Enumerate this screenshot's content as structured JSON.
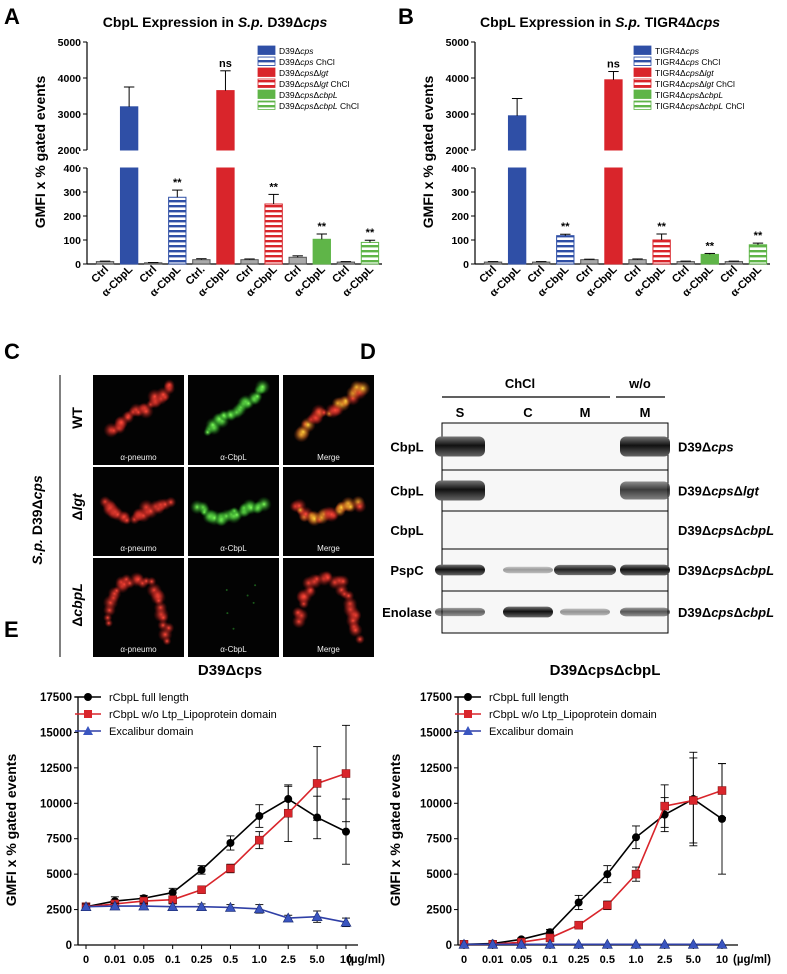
{
  "panel_labels": [
    "A",
    "B",
    "C",
    "D",
    "E"
  ],
  "colors": {
    "blue": "#2f4fa6",
    "red": "#d9252b",
    "green": "#5fb548",
    "gray": "#aaaaaa",
    "black": "#000000",
    "purple": "#2f3fa6"
  },
  "chart_data": [
    {
      "id": "A",
      "type": "bar",
      "title": "CbpL Expression in S.p. D39Δcps",
      "title_plain": "CbpL Expression in ",
      "title_italic": "S.p.",
      "title_strain": " D39Δ",
      "title_strain_italic": "cps",
      "ylabel": "GMFI x % gated events",
      "ylim_lower": [
        0,
        400
      ],
      "ylim_upper": [
        2000,
        5000
      ],
      "yticks_lower": [
        "0",
        "100",
        "200",
        "300",
        "400"
      ],
      "yticks_upper": [
        "2000",
        "3000",
        "4000",
        "5000"
      ],
      "categories": [
        "Ctrl",
        "α-CbpL",
        "Ctrl",
        "α-CbpL",
        "Ctrl.",
        "α-CbpL",
        "Ctrl",
        "α-CbpL",
        "Ctrl",
        "α-CbpL",
        "Ctrl",
        "α-CbpL"
      ],
      "values": [
        10,
        3200,
        5,
        278,
        18,
        3650,
        18,
        250,
        28,
        103,
        8,
        90
      ],
      "errors": [
        2,
        550,
        1,
        30,
        4,
        550,
        3,
        40,
        6,
        22,
        2,
        9
      ],
      "bar_colors": [
        "gray",
        "blue",
        "gray",
        "blue",
        "gray",
        "red",
        "gray",
        "red",
        "gray",
        "green",
        "gray",
        "green"
      ],
      "striped": [
        false,
        false,
        false,
        true,
        false,
        false,
        false,
        true,
        false,
        false,
        false,
        true
      ],
      "annotations": [
        "",
        "",
        "",
        "**",
        "",
        "ns",
        "",
        "**",
        "",
        "**",
        "",
        "**"
      ],
      "legend": [
        {
          "label": "D39Δcps",
          "color": "blue",
          "striped": false
        },
        {
          "label": "D39Δcps ChCl",
          "color": "blue",
          "striped": true
        },
        {
          "label": "D39ΔcpsΔlgt",
          "color": "red",
          "striped": false
        },
        {
          "label": "D39ΔcpsΔlgt ChCl",
          "color": "red",
          "striped": true
        },
        {
          "label": "D39ΔcpsΔcbpL",
          "color": "green",
          "striped": false
        },
        {
          "label": "D39ΔcpsΔcbpL ChCl",
          "color": "green",
          "striped": true
        }
      ]
    },
    {
      "id": "B",
      "type": "bar",
      "title": "CbpL Expression in S.p. TIGR4Δcps",
      "title_plain": "CbpL Expression in ",
      "title_italic": "S.p.",
      "title_strain": " TIGR4Δ",
      "title_strain_italic": "cps",
      "ylabel": "GMFI x % gated events",
      "ylim_lower": [
        0,
        400
      ],
      "ylim_upper": [
        2000,
        5000
      ],
      "yticks_lower": [
        "0",
        "100",
        "200",
        "300",
        "400"
      ],
      "yticks_upper": [
        "2000",
        "3000",
        "4000",
        "5000"
      ],
      "categories": [
        "Ctrl",
        "α-CbpL",
        "Ctrl",
        "α-CbpL",
        "Ctrl",
        "α-CbpL",
        "Ctrl",
        "α-CbpL",
        "Ctrl",
        "α-CbpL",
        "Ctrl",
        "α-CbpL"
      ],
      "values": [
        8,
        2950,
        8,
        118,
        18,
        3950,
        18,
        100,
        10,
        40,
        10,
        80
      ],
      "errors": [
        2,
        480,
        2,
        6,
        2,
        230,
        3,
        25,
        2,
        4,
        2,
        7
      ],
      "bar_colors": [
        "gray",
        "blue",
        "gray",
        "blue",
        "gray",
        "red",
        "gray",
        "red",
        "gray",
        "green",
        "gray",
        "green"
      ],
      "striped": [
        false,
        false,
        false,
        true,
        false,
        false,
        false,
        true,
        false,
        false,
        false,
        true
      ],
      "annotations": [
        "",
        "",
        "",
        "**",
        "",
        "ns",
        "",
        "**",
        "",
        "**",
        "",
        "**"
      ],
      "legend": [
        {
          "label": "TIGR4Δcps",
          "color": "blue",
          "striped": false
        },
        {
          "label": "TIGR4Δcps ChCl",
          "color": "blue",
          "striped": true
        },
        {
          "label": "TIGR4ΔcpsΔlgt",
          "color": "red",
          "striped": false
        },
        {
          "label": "TIGR4ΔcpsΔlgt ChCl",
          "color": "red",
          "striped": true
        },
        {
          "label": "TIGR4ΔcpsΔcbpL",
          "color": "green",
          "striped": false
        },
        {
          "label": "TIGR4ΔcpsΔcbpL ChCl",
          "color": "green",
          "striped": true
        }
      ]
    },
    {
      "id": "E1",
      "type": "line",
      "title": "D39Δcps",
      "ylabel": "GMFI x % gated events",
      "xunit": "(µg/ml)",
      "x": [
        "0",
        "0.01",
        "0.05",
        "0.1",
        "0.25",
        "0.5",
        "1.0",
        "2.5",
        "5.0",
        "10"
      ],
      "ylim": [
        0,
        17500
      ],
      "yticks": [
        "0",
        "2500",
        "5000",
        "7500",
        "10000",
        "12500",
        "15000",
        "17500"
      ],
      "series": [
        {
          "name": "rCbpL full length",
          "color": "black",
          "marker": "circle",
          "values": [
            2700,
            3100,
            3300,
            3700,
            5300,
            7200,
            9100,
            10300,
            9000,
            8000
          ],
          "errors": [
            200,
            300,
            200,
            300,
            300,
            500,
            800,
            900,
            1500,
            2300
          ]
        },
        {
          "name": "rCbpL w/o Ltp_Lipoprotein domain",
          "color": "red",
          "marker": "square",
          "values": [
            2700,
            2900,
            3100,
            3200,
            3900,
            5400,
            7400,
            9300,
            11400,
            12100
          ],
          "errors": [
            200,
            200,
            200,
            200,
            200,
            300,
            600,
            2000,
            2600,
            3400
          ]
        },
        {
          "name": "Excalibur domain",
          "color": "purple",
          "marker": "triangle",
          "values": [
            2700,
            2750,
            2750,
            2700,
            2700,
            2650,
            2550,
            1900,
            2000,
            1600
          ],
          "errors": [
            200,
            200,
            200,
            200,
            200,
            200,
            300,
            200,
            400,
            300
          ]
        }
      ]
    },
    {
      "id": "E2",
      "type": "line",
      "title": "D39ΔcpsΔcbpL",
      "ylabel": "GMFI x % gated events",
      "xunit": "(µg/ml)",
      "x": [
        "0",
        "0.01",
        "0.05",
        "0.1",
        "0.25",
        "0.5",
        "1.0",
        "2.5",
        "5.0",
        "10"
      ],
      "ylim": [
        0,
        17500
      ],
      "yticks": [
        "0",
        "2500",
        "5000",
        "7500",
        "10000",
        "12500",
        "15000",
        "17500"
      ],
      "series": [
        {
          "name": "rCbpL full length",
          "color": "black",
          "marker": "circle",
          "values": [
            50,
            100,
            400,
            900,
            3000,
            5000,
            7600,
            9200,
            10300,
            8900
          ],
          "errors": [
            30,
            40,
            100,
            200,
            500,
            600,
            800,
            1200,
            3300,
            3900
          ]
        },
        {
          "name": "rCbpL w/o Ltp_Lipoprotein domain",
          "color": "red",
          "marker": "square",
          "values": [
            50,
            50,
            200,
            500,
            1400,
            2800,
            5000,
            9800,
            10200,
            10900
          ],
          "errors": [
            30,
            30,
            50,
            100,
            200,
            300,
            500,
            1500,
            3000,
            1900
          ]
        },
        {
          "name": "Excalibur domain",
          "color": "purple",
          "marker": "triangle",
          "values": [
            50,
            50,
            50,
            50,
            50,
            50,
            50,
            50,
            50,
            50
          ],
          "errors": [
            0,
            0,
            0,
            0,
            0,
            0,
            0,
            0,
            0,
            0
          ]
        }
      ]
    }
  ],
  "panel_c": {
    "side_label_italic": "S.p.",
    "side_label": " D39Δ",
    "side_label_italic2": "cps",
    "rows": [
      {
        "label": "WT"
      },
      {
        "label": "Δlgt",
        "label_delta": "Δ",
        "label_italic": "lgt"
      },
      {
        "label": "ΔcbpL",
        "label_delta": "Δ",
        "label_italic": "cbpL"
      }
    ],
    "captions": [
      "α-pneumo",
      "α-CbpL",
      "Merge"
    ]
  },
  "panel_d": {
    "group_chcl": "ChCl",
    "group_wo": "w/o",
    "lanes": [
      "S",
      "C",
      "M",
      "M"
    ],
    "rows": [
      {
        "protein": "CbpL",
        "strain": "D39Δcps",
        "strain_base": "D39Δ",
        "strain_italic": "cps",
        "strain_italic2": ""
      },
      {
        "protein": "CbpL",
        "strain": "D39ΔcpsΔlgt",
        "strain_base": "D39Δ",
        "strain_italic": "cps",
        "strain_italic2": "lgt"
      },
      {
        "protein": "CbpL",
        "strain": "D39ΔcpsΔcbpL",
        "strain_base": "D39Δ",
        "strain_italic": "cps",
        "strain_italic2": "cbpL"
      },
      {
        "protein": "PspC",
        "strain": "D39ΔcpsΔcbpL",
        "strain_base": "D39Δ",
        "strain_italic": "cps",
        "strain_italic2": "cbpL"
      },
      {
        "protein": "Enolase",
        "strain": "D39ΔcpsΔcbpL",
        "strain_base": "D39Δ",
        "strain_italic": "cps",
        "strain_italic2": "cbpL"
      }
    ]
  }
}
